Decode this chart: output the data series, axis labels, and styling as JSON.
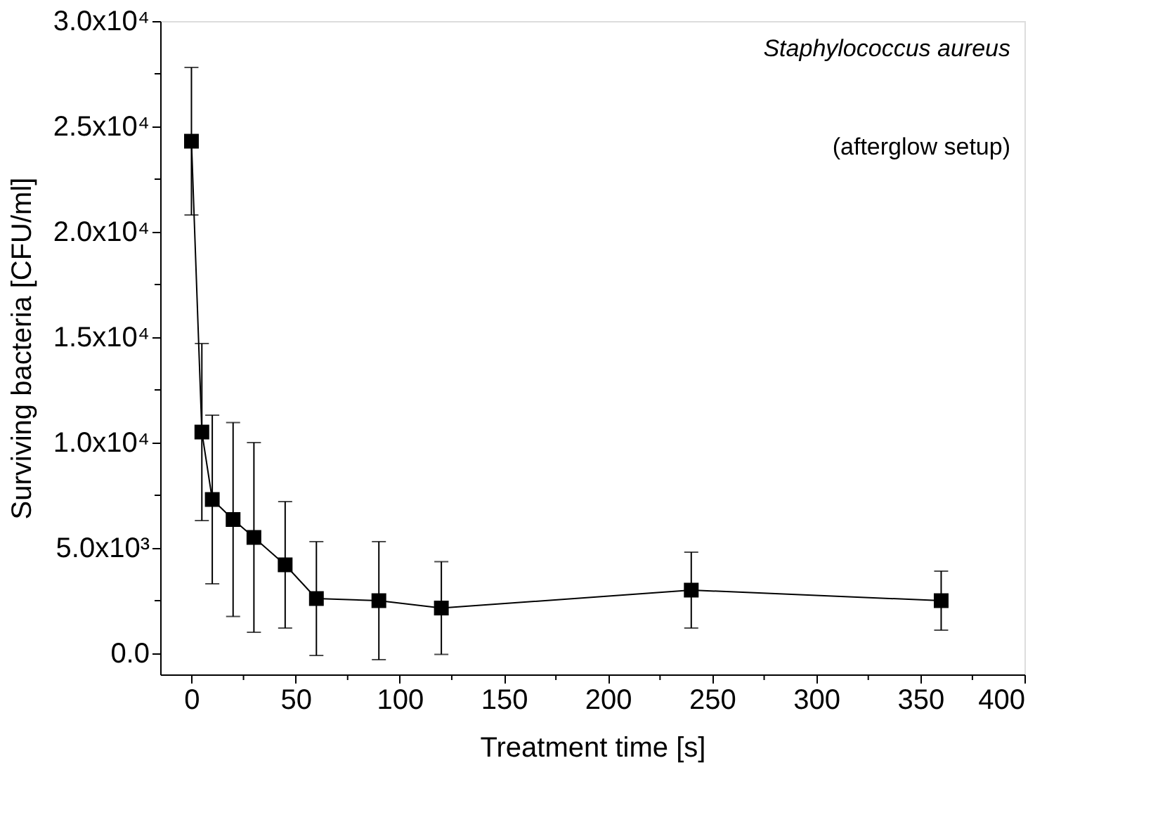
{
  "chart_data": {
    "type": "line",
    "xlabel": "Treatment time [s]",
    "ylabel": "Surviving bacteria [CFU/ml]",
    "annotations": [
      "Staphylococcus aureus",
      "(afterglow setup)"
    ],
    "x": [
      0,
      5,
      10,
      20,
      30,
      45,
      60,
      90,
      120,
      240,
      360
    ],
    "series": [
      {
        "color": "#000000",
        "values": [
          24300,
          10500,
          7300,
          6350,
          5500,
          4200,
          2600,
          2500,
          2150,
          3000,
          2500
        ],
        "errors": [
          3500,
          4200,
          4000,
          4600,
          4500,
          3000,
          2700,
          2800,
          2200,
          1800,
          1400
        ]
      }
    ],
    "xlim": [
      -15,
      400
    ],
    "xticks": [
      0,
      {
        "value": 25,
        "label": null
      },
      50,
      {
        "value": 75,
        "label": null
      },
      100,
      {
        "value": 125,
        "label": null
      },
      150,
      {
        "value": 175,
        "label": null
      },
      200,
      {
        "value": 225,
        "label": null
      },
      250,
      {
        "value": 275,
        "label": null
      },
      300,
      {
        "value": 325,
        "label": null
      },
      350,
      {
        "value": 375,
        "label": null
      },
      400
    ],
    "ylim": [
      -1000,
      30000
    ],
    "yticks": [
      {
        "value": 0,
        "label": "0.0"
      },
      {
        "value": 2500,
        "label": null
      },
      {
        "value": 5000,
        "label": "5.0x10³"
      },
      {
        "value": 7500,
        "label": null
      },
      {
        "value": 10000,
        "label": "1.0x10⁴"
      },
      {
        "value": 12500,
        "label": null
      },
      {
        "value": 15000,
        "label": "1.5x10⁴"
      },
      {
        "value": 17500,
        "label": null
      },
      {
        "value": 20000,
        "label": "2.0x10⁴"
      },
      {
        "value": 22500,
        "label": null
      },
      {
        "value": 25000,
        "label": "2.5x10⁴"
      },
      {
        "value": 27500,
        "label": null
      },
      {
        "value": 30000,
        "label": "3.0x10⁴"
      }
    ],
    "marker": "square",
    "line_style": "solid",
    "grid": false
  }
}
